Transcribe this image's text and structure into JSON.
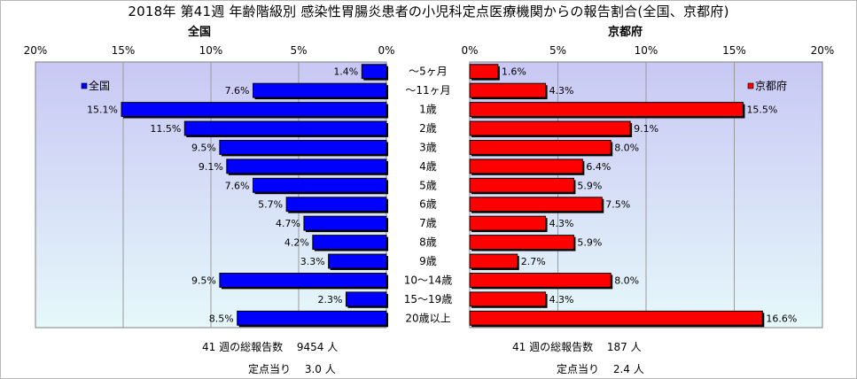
{
  "title": "2018年 第41週 年齢階級別 感染性胃腸炎患者の小児科定点医療機関からの報告割合(全国、京都府)",
  "colors": {
    "national": "#0000ff",
    "kyoto": "#ff0000",
    "plot_bg_top": "#c8c8f4",
    "plot_bg_bottom": "#e6f8fa"
  },
  "chart_data": [
    {
      "type": "bar",
      "orientation": "horizontal",
      "direction": "right-to-left",
      "title": "全国",
      "xlim": [
        0,
        20
      ],
      "xticks": [
        "20%",
        "15%",
        "10%",
        "5%",
        "0%"
      ],
      "legend": "全国",
      "legend_position": "top-left",
      "categories": [
        "～5ヶ月",
        "～11ヶ月",
        "1歳",
        "2歳",
        "3歳",
        "4歳",
        "5歳",
        "6歳",
        "7歳",
        "8歳",
        "9歳",
        "10～14歳",
        "15～19歳",
        "20歳以上"
      ],
      "values": [
        1.4,
        7.6,
        15.1,
        11.5,
        9.5,
        9.1,
        7.6,
        5.7,
        4.7,
        4.2,
        3.3,
        9.5,
        2.3,
        8.5
      ],
      "labels": [
        "1.4%",
        "7.6%",
        "15.1%",
        "11.5%",
        "9.5%",
        "9.1%",
        "7.6%",
        "5.7%",
        "4.7%",
        "4.2%",
        "3.3%",
        "9.5%",
        "2.3%",
        "8.5%"
      ]
    },
    {
      "type": "bar",
      "orientation": "horizontal",
      "direction": "left-to-right",
      "title": "京都府",
      "xlim": [
        0,
        20
      ],
      "xticks": [
        "0%",
        "5%",
        "10%",
        "15%",
        "20%"
      ],
      "legend": "京都府",
      "legend_position": "top-right",
      "categories": [
        "～5ヶ月",
        "～11ヶ月",
        "1歳",
        "2歳",
        "3歳",
        "4歳",
        "5歳",
        "6歳",
        "7歳",
        "8歳",
        "9歳",
        "10～14歳",
        "15～19歳",
        "20歳以上"
      ],
      "values": [
        1.6,
        4.3,
        15.5,
        9.1,
        8.0,
        6.4,
        5.9,
        7.5,
        4.3,
        5.9,
        2.7,
        8.0,
        4.3,
        16.6
      ],
      "labels": [
        "1.6%",
        "4.3%",
        "15.5%",
        "9.1%",
        "8.0%",
        "6.4%",
        "5.9%",
        "7.5%",
        "4.3%",
        "5.9%",
        "2.7%",
        "8.0%",
        "4.3%",
        "16.6%"
      ]
    }
  ],
  "footer": {
    "national_total": "41 週の総報告数　 9454 人",
    "national_per_site": "定点当り　 3.0 人",
    "kyoto_total": "41 週の総報告数　 187 人",
    "kyoto_per_site": "定点当り　 2.4 人"
  }
}
